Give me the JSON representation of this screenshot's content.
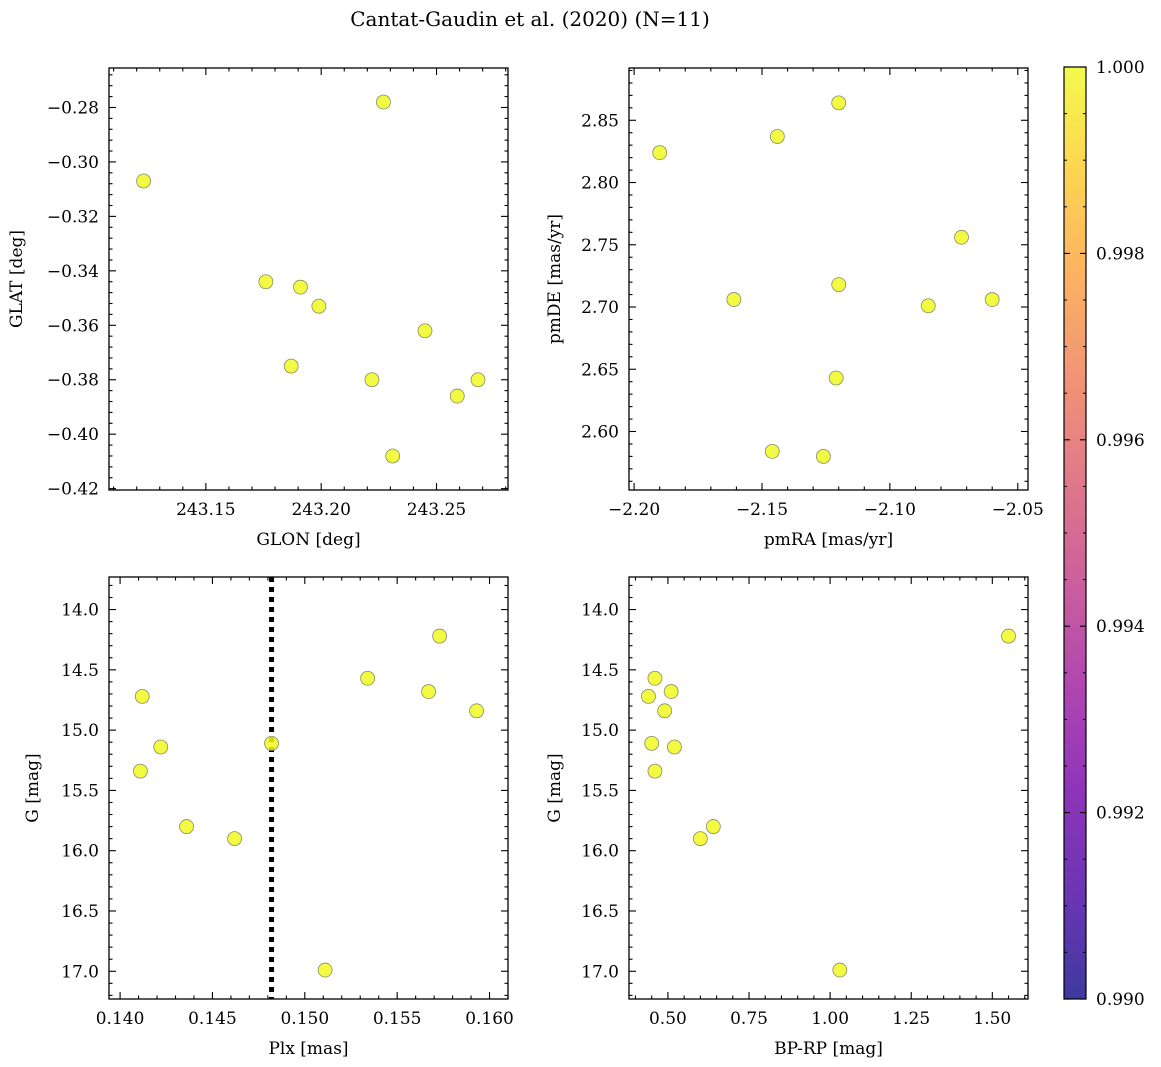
{
  "figure_title": "Cantat-Gaudin et al. (2020) (N=11)",
  "colors": {
    "point_fill": "#f0f921",
    "point_edge": "#8a8a6a",
    "vline": "#000000",
    "cmap": [
      "#0d0887",
      "#46039f",
      "#7201a8",
      "#9c179e",
      "#bd3786",
      "#d8576b",
      "#ed7953",
      "#fb9f3a",
      "#fdca26",
      "#f0f921"
    ]
  },
  "colorbar": {
    "min": 0.99,
    "max": 1.0,
    "ticks": [
      "0.990",
      "0.992",
      "0.994",
      "0.996",
      "0.998",
      "1.000"
    ]
  },
  "chart_data": [
    {
      "type": "scatter",
      "id": "sky",
      "xlabel": "GLON [deg]",
      "ylabel": "GLAT [deg]",
      "xlim": [
        243.108,
        243.281
      ],
      "ylim": [
        -0.4205,
        -0.2655
      ],
      "xticks": [
        "243.15",
        "243.20",
        "243.25"
      ],
      "yticks": [
        "-0.28",
        "-0.30",
        "-0.32",
        "-0.34",
        "-0.36",
        "-0.38",
        "-0.40",
        "-0.42"
      ],
      "x": [
        243.227,
        243.123,
        243.176,
        243.191,
        243.199,
        243.245,
        243.187,
        243.222,
        243.259,
        243.268,
        243.231
      ],
      "y": [
        -0.278,
        -0.307,
        -0.344,
        -0.346,
        -0.353,
        -0.362,
        -0.375,
        -0.38,
        -0.386,
        -0.38,
        -0.408
      ]
    },
    {
      "type": "scatter",
      "id": "pm",
      "xlabel": "pmRA [mas/yr]",
      "ylabel": "pmDE [mas/yr]",
      "xlim": [
        -2.202,
        -2.046
      ],
      "ylim": [
        2.553,
        2.892
      ],
      "xticks": [
        "-2.20",
        "-2.15",
        "-2.10",
        "-2.05"
      ],
      "yticks": [
        "2.85",
        "2.80",
        "2.75",
        "2.70",
        "2.65",
        "2.60"
      ],
      "x": [
        -2.12,
        -2.144,
        -2.19,
        -2.072,
        -2.161,
        -2.12,
        -2.085,
        -2.06,
        -2.121,
        -2.146,
        -2.126
      ],
      "y": [
        2.864,
        2.837,
        2.824,
        2.756,
        2.706,
        2.718,
        2.701,
        2.706,
        2.643,
        2.584,
        2.58
      ]
    },
    {
      "type": "scatter",
      "id": "plx",
      "xlabel": "Plx [mas]",
      "ylabel": "G [mag]",
      "xlim": [
        0.1394,
        0.161
      ],
      "ylim": [
        17.23,
        13.73
      ],
      "yinverted": true,
      "xticks": [
        "0.140",
        "0.145",
        "0.150",
        "0.155",
        "0.160"
      ],
      "yticks": [
        "14.0",
        "14.5",
        "15.0",
        "15.5",
        "16.0",
        "16.5",
        "17.0"
      ],
      "vline": 0.1482,
      "x": [
        0.1573,
        0.1412,
        0.1534,
        0.1567,
        0.1593,
        0.1422,
        0.1482,
        0.1411,
        0.1436,
        0.1462,
        0.1511
      ],
      "y": [
        14.22,
        14.72,
        14.57,
        14.68,
        14.84,
        15.14,
        15.11,
        15.34,
        15.8,
        15.9,
        16.99
      ]
    },
    {
      "type": "scatter",
      "id": "cmd",
      "xlabel": "BP-RP [mag]",
      "ylabel": "G [mag]",
      "xlim": [
        0.38,
        1.61
      ],
      "ylim": [
        17.23,
        13.73
      ],
      "yinverted": true,
      "xticks": [
        "0.50",
        "0.75",
        "1.00",
        "1.25",
        "1.50"
      ],
      "yticks": [
        "14.0",
        "14.5",
        "15.0",
        "15.5",
        "16.0",
        "16.5",
        "17.0"
      ],
      "x": [
        1.55,
        0.46,
        0.44,
        0.51,
        0.49,
        0.45,
        0.52,
        0.46,
        0.64,
        0.6,
        1.03
      ],
      "y": [
        14.22,
        14.57,
        14.72,
        14.68,
        14.84,
        15.11,
        15.14,
        15.34,
        15.8,
        15.9,
        16.99
      ]
    }
  ]
}
